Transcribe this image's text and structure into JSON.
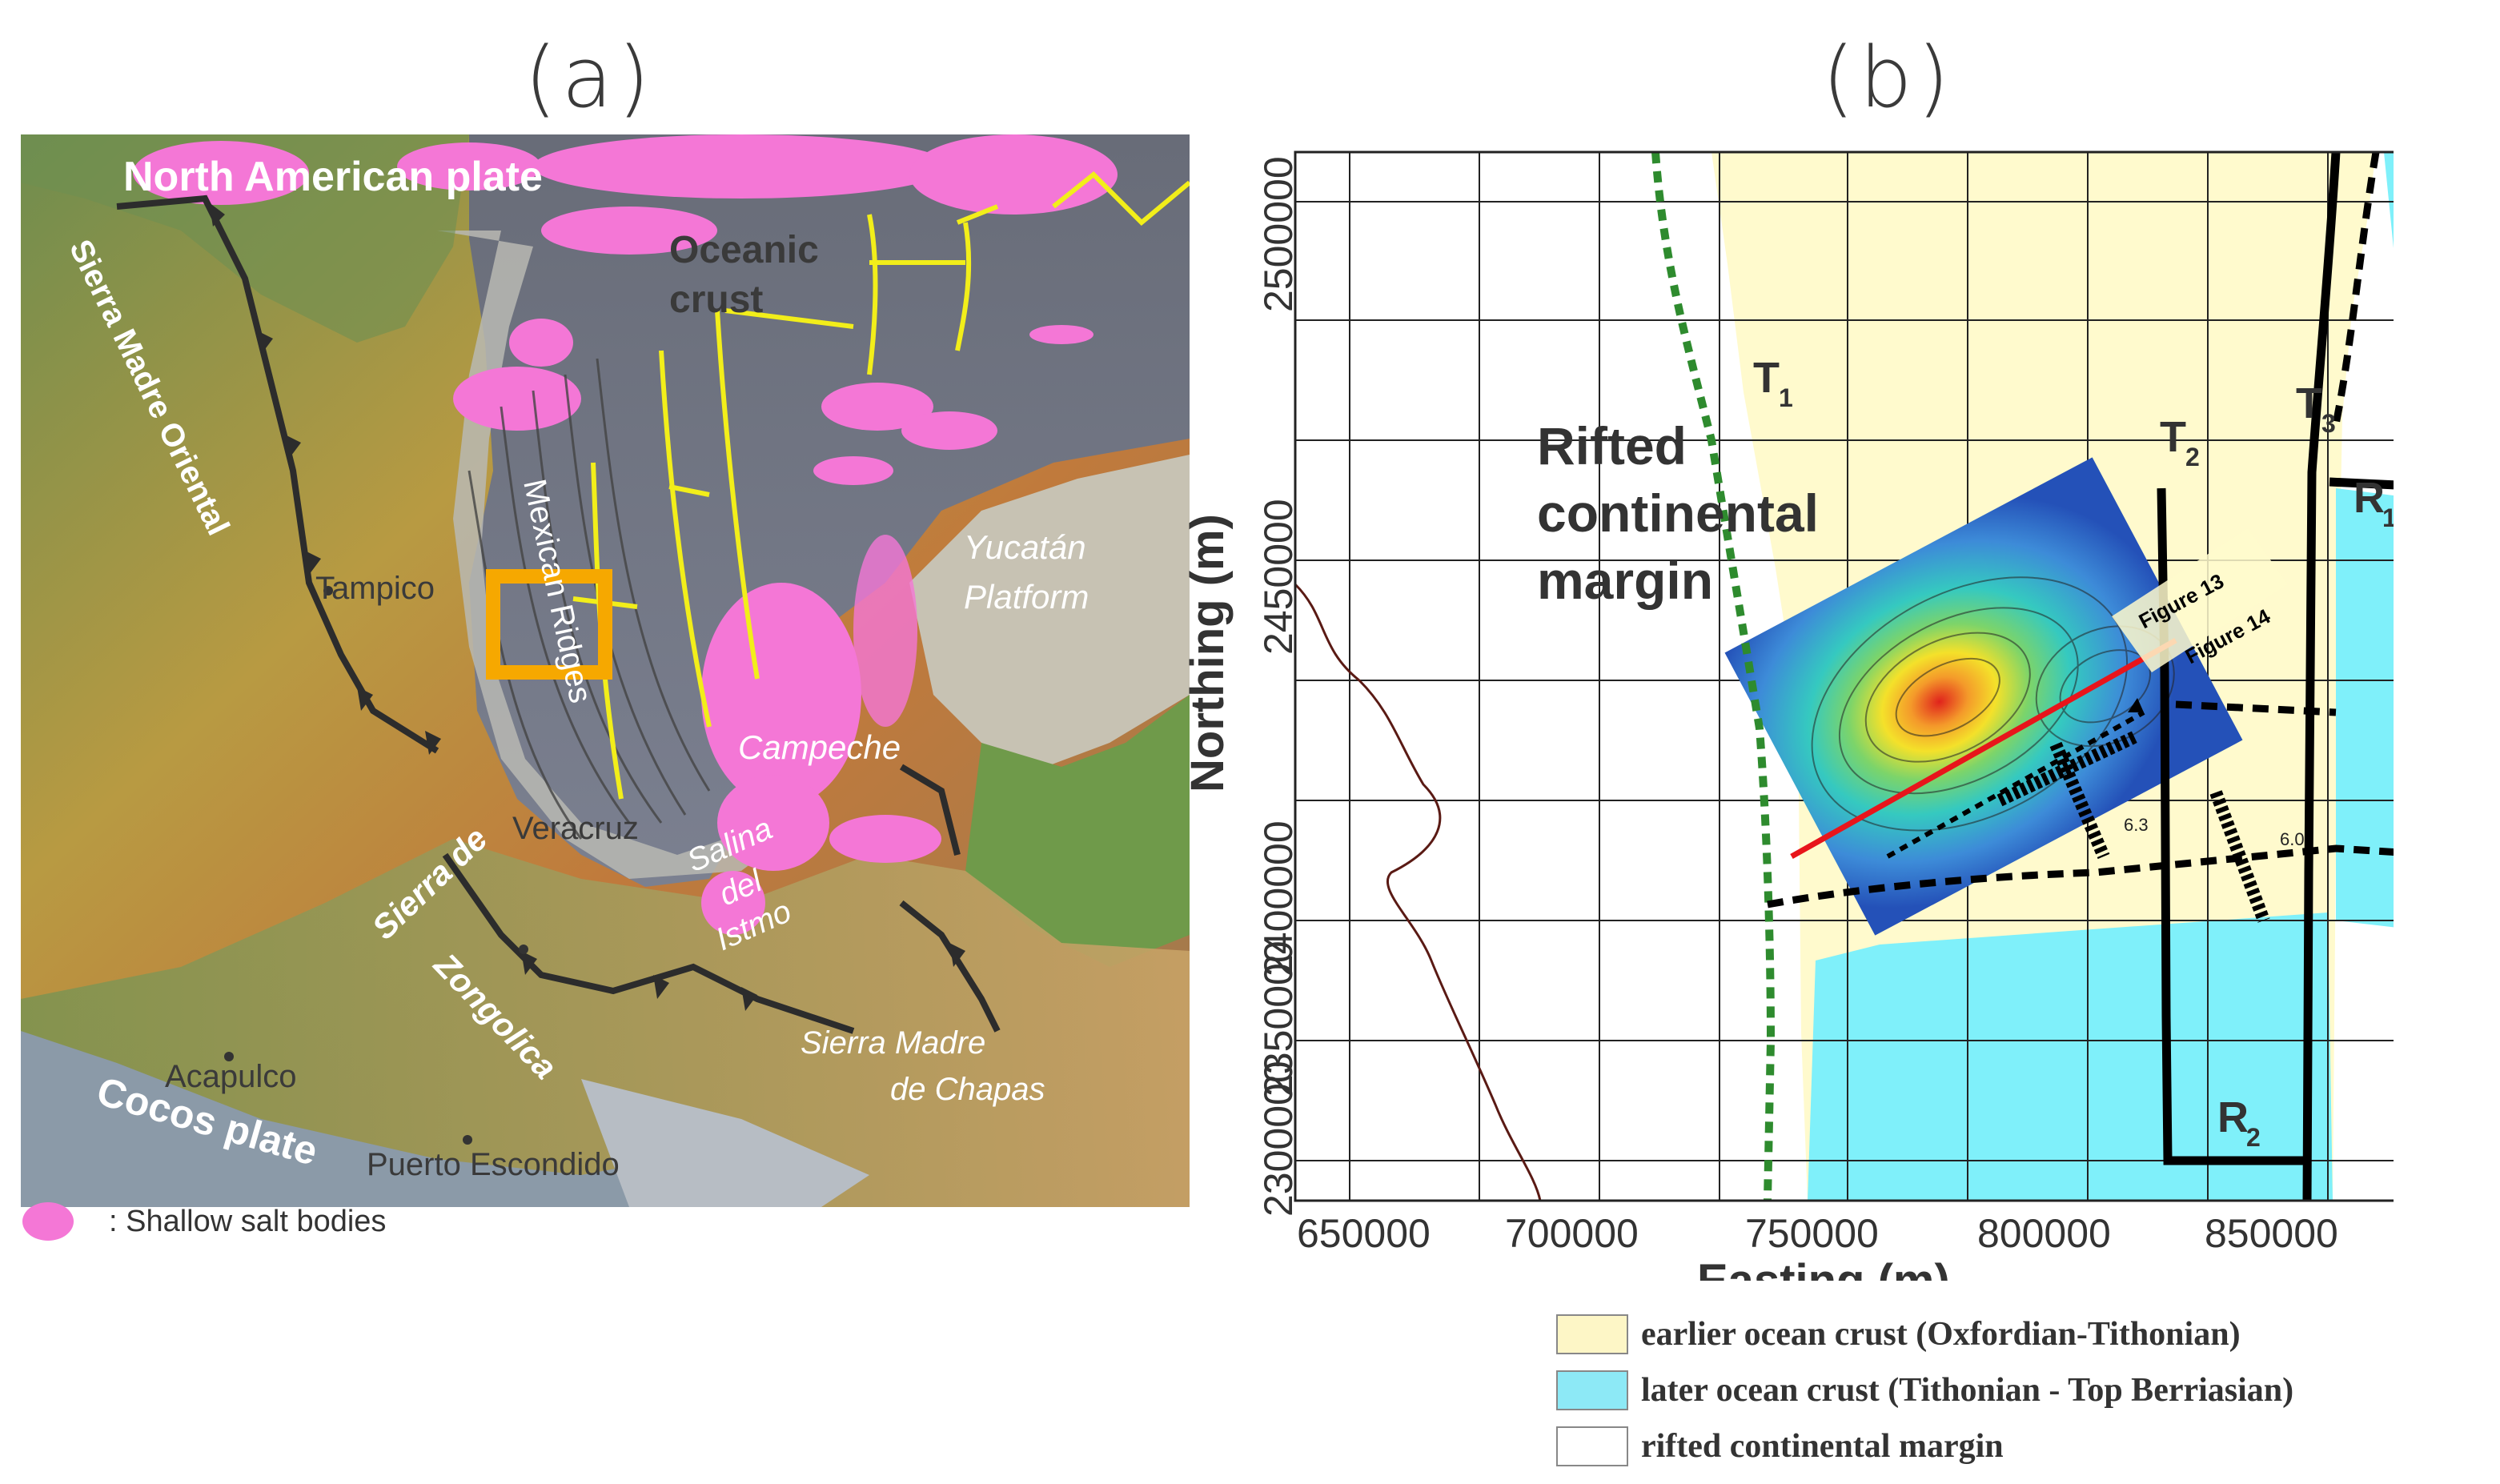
{
  "panel_a": {
    "label": "(a)",
    "places": {
      "north_american_plate": "North American plate",
      "oceanic_crust_1": "Oceanic",
      "oceanic_crust_2": "crust",
      "sierra_madre_oriental": "Sierra Madre Oriental",
      "tampico": "Tampico",
      "mexican_ridges": "Mexican Ridges",
      "yucatan_1": "Yucatán",
      "yucatan_2": "Platform",
      "campeche": "Campeche",
      "veracruz": "Veracruz",
      "salina_1": "Salina",
      "salina_2": "del",
      "salina_3": "Istmo",
      "sierra_zongolica_1": "Sierra de",
      "sierra_zongolica_2": "Zongolica",
      "sierra_chapas_1": "Sierra Madre",
      "sierra_chapas_2": "de Chapas",
      "acapulco": "Acapulco",
      "cocos_plate": "Cocos plate",
      "puerto_escondido": "Puerto Escondido"
    },
    "salt_legend": ": Shallow salt bodies",
    "colors": {
      "salt": "#f477d6",
      "ridge": "#f2ee1a",
      "study_box": "#f6a800",
      "thrust": "#2c2c2c"
    }
  },
  "panel_b": {
    "label": "(b)",
    "x_axis": {
      "title": "Easting (m)",
      "ticks": [
        "650000",
        "700000",
        "750000",
        "800000",
        "850000"
      ]
    },
    "y_axis": {
      "title": "Northing (m)",
      "ticks": [
        "2300000",
        "2350000",
        "2400000",
        "2450000",
        "2500000"
      ]
    },
    "annotations": {
      "rifted_1": "Rifted",
      "rifted_2": "continental",
      "rifted_3": "margin",
      "t1": "T",
      "t1_sub": "1",
      "t2": "T",
      "t2_sub": "2",
      "t3": "T",
      "t3_sub": "3",
      "r1": "R",
      "r1_sub": "1",
      "r2": "R",
      "r2_sub": "2",
      "figure13": "Figure 13",
      "figure14": "Figure 14",
      "contour_a": "6.3",
      "contour_b": "6.0"
    },
    "legend": [
      {
        "label": "earlier ocean crust (Oxfordian-Tithonian)",
        "color": "#fdf6c6"
      },
      {
        "label": "later ocean crust (Tithonian - Top Berriasian)",
        "color": "#8de9f6"
      },
      {
        "label": "rifted continental margin",
        "color": "#ffffff"
      }
    ],
    "colors": {
      "early_crust": "#fffacd",
      "late_crust": "#7ff0fa",
      "t1_boundary": "#2e8b2e",
      "profile_13": "#e8151b"
    }
  }
}
